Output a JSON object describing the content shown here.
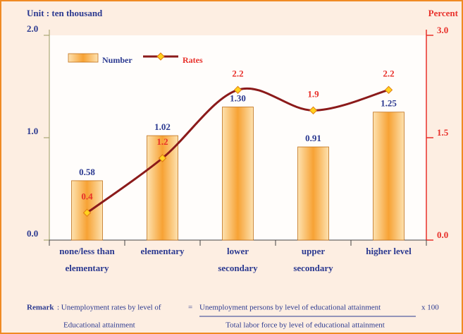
{
  "chart_data": {
    "type": "bar",
    "y_label": "Unit : ten thousand",
    "y2_label": "Percent",
    "categories": [
      [
        "none/less than",
        "elementary"
      ],
      [
        "elementary"
      ],
      [
        "lower",
        "secondary"
      ],
      [
        "upper",
        "secondary"
      ],
      [
        "higher level"
      ]
    ],
    "series": [
      {
        "name": "Number",
        "type": "bar",
        "color": "#f7a234",
        "values": [
          0.58,
          1.02,
          1.3,
          0.91,
          1.25
        ],
        "value_labels": [
          "0.58",
          "1.02",
          "1.30",
          "0.91",
          "1.25"
        ],
        "label_color": "#2b3990"
      },
      {
        "name": "Rates",
        "type": "line",
        "axis": "y2",
        "color": "#8b1a1a",
        "marker_color": "#ffd21f",
        "values": [
          0.4,
          1.2,
          2.2,
          1.9,
          2.2
        ],
        "label_color": "#e8302a"
      }
    ],
    "ylim": [
      0,
      2
    ],
    "yticks": [
      {
        "value": 0,
        "label": "0.0"
      },
      {
        "value": 1,
        "label": "1.0"
      },
      {
        "value": 2,
        "label": "2.0"
      }
    ],
    "y2lim": [
      0,
      3
    ],
    "y2ticks": [
      {
        "value": 0,
        "label": "0.0"
      },
      {
        "value": 1.5,
        "label": "1.5"
      },
      {
        "value": 3,
        "label": "3.0"
      }
    ],
    "remark": {
      "label": "Remark",
      "text": ":  Unemployment rates by level of",
      "equals": "=",
      "numerator": "Unemployment persons by level of educational attainment",
      "multiplier": "x  100",
      "subject": "Educational attainment",
      "denominator": "Total labor force by level of educational attainment"
    }
  }
}
